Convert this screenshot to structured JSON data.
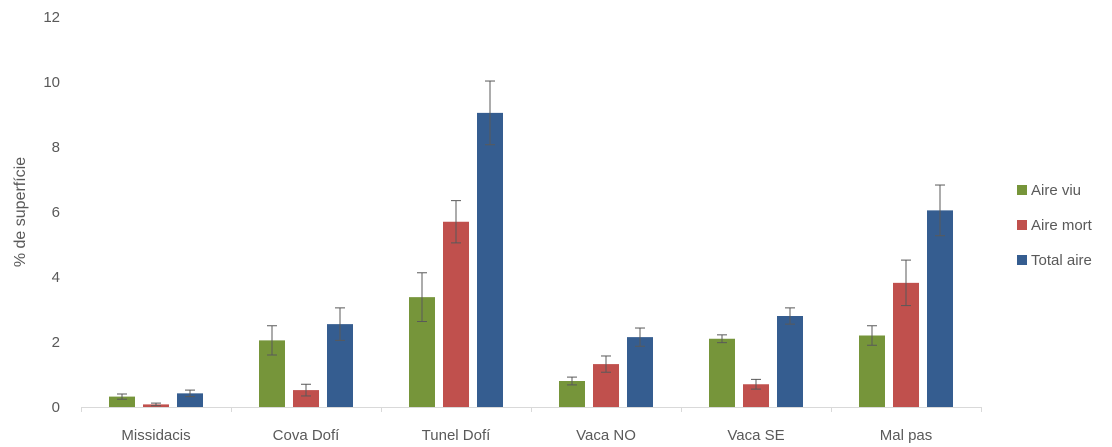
{
  "chart_data": {
    "type": "bar",
    "title": "",
    "xlabel": "",
    "ylabel": "% de superfície",
    "ylim": [
      0,
      12
    ],
    "yticks": [
      0,
      2,
      4,
      6,
      8,
      10,
      12
    ],
    "grid": false,
    "legend_position": "right",
    "categories": [
      "Missidacis",
      "Cova Dofí",
      "Tunel Dofí",
      "Vaca NO",
      "Vaca SE",
      "Mal pas"
    ],
    "series": [
      {
        "name": "Aire viu",
        "color": "#76953a",
        "values": [
          0.32,
          2.05,
          3.38,
          0.8,
          2.1,
          2.2
        ],
        "errors": [
          0.08,
          0.45,
          0.75,
          0.12,
          0.12,
          0.3
        ]
      },
      {
        "name": "Aire mort",
        "color": "#c0504d",
        "values": [
          0.08,
          0.52,
          5.7,
          1.32,
          0.7,
          3.82
        ],
        "errors": [
          0.04,
          0.18,
          0.65,
          0.25,
          0.15,
          0.7
        ]
      },
      {
        "name": "Total aire",
        "color": "#355d90",
        "values": [
          0.42,
          2.55,
          9.05,
          2.15,
          2.8,
          6.05
        ],
        "errors": [
          0.1,
          0.5,
          0.98,
          0.28,
          0.25,
          0.78
        ]
      }
    ]
  }
}
